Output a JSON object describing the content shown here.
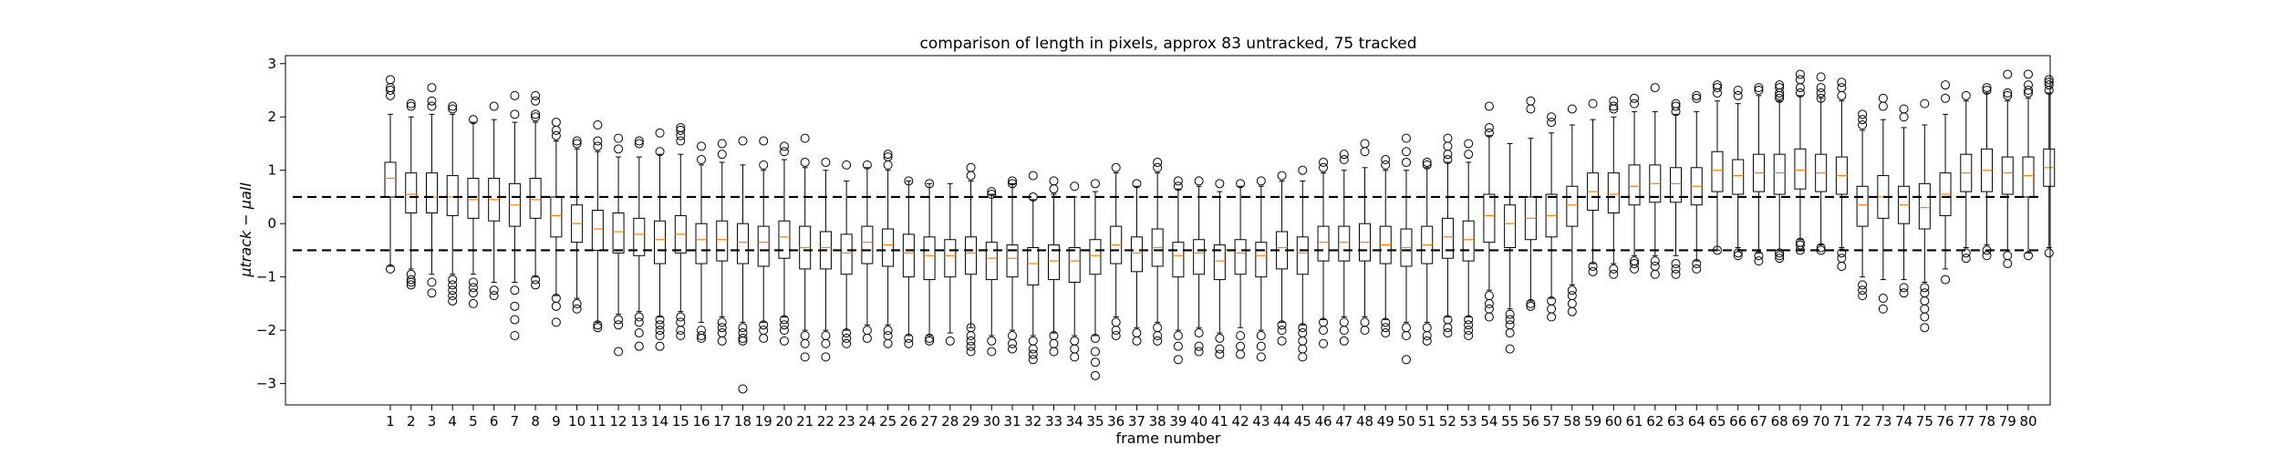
{
  "chart_data": {
    "type": "box",
    "title": "comparison of length in pixels, approx 83 untracked, 75 tracked",
    "xlabel": "frame number",
    "ylabel": "μtrack − μall",
    "ylim": [
      -3.4,
      3.15
    ],
    "yticks": [
      -3,
      -2,
      -1,
      0,
      1,
      2,
      3
    ],
    "reference_lines": [
      0.5,
      -0.5
    ],
    "colors": {
      "box": "#000000",
      "median": "#ff7f0e",
      "reference": "#000000"
    },
    "categories": [
      "1",
      "2",
      "3",
      "4",
      "5",
      "6",
      "7",
      "8",
      "9",
      "10",
      "11",
      "12",
      "13",
      "14",
      "15",
      "16",
      "17",
      "18",
      "19",
      "20",
      "21",
      "22",
      "23",
      "24",
      "25",
      "26",
      "27",
      "28",
      "29",
      "30",
      "31",
      "32",
      "33",
      "34",
      "35",
      "36",
      "37",
      "38",
      "39",
      "40",
      "41",
      "42",
      "43",
      "44",
      "45",
      "46",
      "47",
      "48",
      "49",
      "50",
      "51",
      "52",
      "53",
      "54",
      "55",
      "56",
      "57",
      "58",
      "59",
      "60",
      "61",
      "62",
      "63",
      "64",
      "65",
      "66",
      "67",
      "68",
      "69",
      "70",
      "71",
      "72",
      "73",
      "74",
      "75",
      "76",
      "77",
      "78",
      "79",
      "80"
    ],
    "boxes": [
      {
        "q1": 0.5,
        "median": 0.85,
        "q3": 1.15,
        "wl": -0.8,
        "wh": 2.05,
        "out": [
          2.7,
          2.55,
          2.5,
          2.4,
          -0.85
        ]
      },
      {
        "q1": 0.2,
        "median": 0.55,
        "q3": 0.95,
        "wl": -0.85,
        "wh": 2.0,
        "out": [
          2.25,
          2.2,
          -0.95,
          -1.05,
          -1.1,
          -1.15
        ]
      },
      {
        "q1": 0.2,
        "median": 0.5,
        "q3": 0.95,
        "wl": -0.95,
        "wh": 2.05,
        "out": [
          2.55,
          2.3,
          2.2,
          -1.1,
          -1.3
        ]
      },
      {
        "q1": 0.15,
        "median": 0.5,
        "q3": 0.9,
        "wl": -0.95,
        "wh": 2.05,
        "out": [
          2.2,
          2.15,
          -1.05,
          -1.15,
          -1.25,
          -1.35,
          -1.45
        ]
      },
      {
        "q1": 0.1,
        "median": 0.45,
        "q3": 0.85,
        "wl": -0.95,
        "wh": 1.9,
        "out": [
          1.95,
          -1.1,
          -1.2,
          -1.3,
          -1.5
        ]
      },
      {
        "q1": 0.05,
        "median": 0.45,
        "q3": 0.85,
        "wl": -1.1,
        "wh": 1.95,
        "out": [
          2.2,
          -1.25,
          -1.35
        ]
      },
      {
        "q1": -0.05,
        "median": 0.35,
        "q3": 0.75,
        "wl": -1.1,
        "wh": 1.9,
        "out": [
          2.4,
          2.05,
          -1.25,
          -1.55,
          -1.8,
          -2.1
        ]
      },
      {
        "q1": 0.1,
        "median": 0.45,
        "q3": 0.85,
        "wl": -1.0,
        "wh": 1.9,
        "out": [
          2.4,
          2.3,
          2.05,
          2.0,
          -1.05,
          -1.15
        ]
      },
      {
        "q1": -0.25,
        "median": 0.15,
        "q3": 0.5,
        "wl": -1.35,
        "wh": 1.55,
        "out": [
          1.9,
          1.75,
          1.65,
          -1.4,
          -1.55,
          -1.85
        ]
      },
      {
        "q1": -0.35,
        "median": 0.0,
        "q3": 0.35,
        "wl": -1.4,
        "wh": 1.4,
        "out": [
          1.55,
          1.5,
          -1.5,
          -1.6
        ]
      },
      {
        "q1": -0.5,
        "median": -0.1,
        "q3": 0.25,
        "wl": -1.85,
        "wh": 1.35,
        "out": [
          1.85,
          1.55,
          1.45,
          -1.9,
          -1.95
        ]
      },
      {
        "q1": -0.55,
        "median": -0.15,
        "q3": 0.2,
        "wl": -1.7,
        "wh": 1.25,
        "out": [
          1.6,
          1.4,
          -1.8,
          -1.9,
          -2.4
        ]
      },
      {
        "q1": -0.6,
        "median": -0.2,
        "q3": 0.1,
        "wl": -1.65,
        "wh": 1.25,
        "out": [
          1.55,
          1.5,
          -1.75,
          -1.85,
          -2.05,
          -2.3
        ]
      },
      {
        "q1": -0.75,
        "median": -0.3,
        "q3": 0.05,
        "wl": -1.75,
        "wh": 1.3,
        "out": [
          1.7,
          1.35,
          -1.8,
          -1.9,
          -2.0,
          -2.1,
          -2.3
        ]
      },
      {
        "q1": -0.55,
        "median": -0.2,
        "q3": 0.15,
        "wl": -1.65,
        "wh": 1.3,
        "out": [
          1.8,
          1.75,
          1.65,
          1.55,
          -1.75,
          -1.85,
          -2.0,
          -2.1
        ]
      },
      {
        "q1": -0.75,
        "median": -0.3,
        "q3": 0.0,
        "wl": -1.85,
        "wh": 1.1,
        "out": [
          1.45,
          1.2,
          -2.0,
          -2.1,
          -2.15
        ]
      },
      {
        "q1": -0.7,
        "median": -0.3,
        "q3": 0.05,
        "wl": -1.75,
        "wh": 1.15,
        "out": [
          1.5,
          1.3,
          -1.85,
          -1.95,
          -2.05,
          -2.2
        ]
      },
      {
        "q1": -0.75,
        "median": -0.35,
        "q3": 0.0,
        "wl": -1.85,
        "wh": 1.1,
        "out": [
          1.55,
          -1.95,
          -2.05,
          -2.15,
          -2.2,
          -3.1
        ]
      },
      {
        "q1": -0.8,
        "median": -0.35,
        "q3": -0.05,
        "wl": -1.85,
        "wh": 1.0,
        "out": [
          1.55,
          1.1,
          -1.9,
          -2.0,
          -2.15
        ]
      },
      {
        "q1": -0.65,
        "median": -0.25,
        "q3": 0.05,
        "wl": -1.75,
        "wh": 1.2,
        "out": [
          1.45,
          1.35,
          -1.8,
          -1.9,
          -2.0,
          -2.2
        ]
      },
      {
        "q1": -0.85,
        "median": -0.45,
        "q3": -0.05,
        "wl": -2.0,
        "wh": 1.05,
        "out": [
          1.6,
          1.15,
          -2.1,
          -2.25,
          -2.5
        ]
      },
      {
        "q1": -0.85,
        "median": -0.45,
        "q3": -0.15,
        "wl": -2.0,
        "wh": 1.0,
        "out": [
          1.15,
          -2.1,
          -2.25,
          -2.5
        ]
      },
      {
        "q1": -0.95,
        "median": -0.55,
        "q3": -0.2,
        "wl": -2.0,
        "wh": 0.8,
        "out": [
          1.1,
          -2.05,
          -2.15,
          -2.25
        ]
      },
      {
        "q1": -0.75,
        "median": -0.35,
        "q3": -0.05,
        "wl": -1.9,
        "wh": 1.05,
        "out": [
          1.1,
          -2.0,
          -2.15
        ]
      },
      {
        "q1": -0.8,
        "median": -0.4,
        "q3": -0.1,
        "wl": -1.9,
        "wh": 1.0,
        "out": [
          1.3,
          1.25,
          1.1,
          -2.0,
          -2.1,
          -2.25
        ]
      },
      {
        "q1": -1.0,
        "median": -0.55,
        "q3": -0.2,
        "wl": -2.1,
        "wh": 0.8,
        "out": [
          0.8,
          -2.15,
          -2.25
        ]
      },
      {
        "q1": -1.05,
        "median": -0.6,
        "q3": -0.25,
        "wl": -2.1,
        "wh": 0.75,
        "out": [
          0.75,
          -2.15,
          -2.2
        ]
      },
      {
        "q1": -1.0,
        "median": -0.6,
        "q3": -0.3,
        "wl": -2.05,
        "wh": 0.75,
        "out": [
          -2.2
        ]
      },
      {
        "q1": -0.95,
        "median": -0.55,
        "q3": -0.25,
        "wl": -1.95,
        "wh": 0.8,
        "out": [
          1.05,
          0.9,
          -1.95,
          -2.1,
          -2.2,
          -2.3,
          -2.4
        ]
      },
      {
        "q1": -1.05,
        "median": -0.65,
        "q3": -0.35,
        "wl": -2.1,
        "wh": 0.55,
        "out": [
          0.6,
          0.55,
          -2.2,
          -2.4
        ]
      },
      {
        "q1": -1.0,
        "median": -0.65,
        "q3": -0.4,
        "wl": -2.0,
        "wh": 0.75,
        "out": [
          0.8,
          0.75,
          -2.1,
          -2.25,
          -2.35
        ]
      },
      {
        "q1": -1.15,
        "median": -0.75,
        "q3": -0.45,
        "wl": -2.1,
        "wh": 0.45,
        "out": [
          0.9,
          0.5,
          -2.2,
          -2.35,
          -2.45,
          -2.55
        ]
      },
      {
        "q1": -1.05,
        "median": -0.7,
        "q3": -0.4,
        "wl": -2.05,
        "wh": 0.55,
        "out": [
          0.8,
          0.65,
          -2.1,
          -2.25,
          -2.4
        ]
      },
      {
        "q1": -1.1,
        "median": -0.7,
        "q3": -0.45,
        "wl": -2.1,
        "wh": 0.5,
        "out": [
          0.7,
          -2.2,
          -2.35,
          -2.5
        ]
      },
      {
        "q1": -0.95,
        "median": -0.6,
        "q3": -0.3,
        "wl": -2.1,
        "wh": 0.6,
        "out": [
          0.75,
          -2.15,
          -2.4,
          -2.6,
          -2.85
        ]
      },
      {
        "q1": -0.75,
        "median": -0.4,
        "q3": -0.05,
        "wl": -1.75,
        "wh": 0.95,
        "out": [
          1.05,
          -1.85,
          -2.0,
          -2.1
        ]
      },
      {
        "q1": -0.9,
        "median": -0.55,
        "q3": -0.25,
        "wl": -1.95,
        "wh": 0.7,
        "out": [
          0.75,
          -2.05,
          -2.2
        ]
      },
      {
        "q1": -0.8,
        "median": -0.45,
        "q3": -0.1,
        "wl": -1.85,
        "wh": 0.95,
        "out": [
          1.15,
          1.05,
          -1.95,
          -2.1,
          -2.2
        ]
      },
      {
        "q1": -1.0,
        "median": -0.6,
        "q3": -0.35,
        "wl": -2.0,
        "wh": 0.65,
        "out": [
          0.8,
          0.7,
          -2.1,
          -2.3,
          -2.55
        ]
      },
      {
        "q1": -0.95,
        "median": -0.55,
        "q3": -0.3,
        "wl": -1.95,
        "wh": 0.7,
        "out": [
          0.8,
          -2.05,
          -2.3,
          -2.4
        ]
      },
      {
        "q1": -1.05,
        "median": -0.7,
        "q3": -0.4,
        "wl": -2.05,
        "wh": 0.6,
        "out": [
          0.75,
          -2.15,
          -2.35,
          -2.45
        ]
      },
      {
        "q1": -0.95,
        "median": -0.55,
        "q3": -0.3,
        "wl": -1.95,
        "wh": 0.7,
        "out": [
          0.75,
          -2.1,
          -2.3,
          -2.45
        ]
      },
      {
        "q1": -1.0,
        "median": -0.6,
        "q3": -0.35,
        "wl": -2.0,
        "wh": 0.7,
        "out": [
          0.8,
          -2.1,
          -2.3,
          -2.5
        ]
      },
      {
        "q1": -0.85,
        "median": -0.45,
        "q3": -0.15,
        "wl": -1.85,
        "wh": 0.8,
        "out": [
          0.9,
          -1.9,
          -2.0,
          -2.2
        ]
      },
      {
        "q1": -0.95,
        "median": -0.55,
        "q3": -0.25,
        "wl": -1.9,
        "wh": 0.8,
        "out": [
          1.0,
          -1.95,
          -2.05,
          -2.2,
          -2.35,
          -2.5
        ]
      },
      {
        "q1": -0.7,
        "median": -0.35,
        "q3": -0.05,
        "wl": -1.8,
        "wh": 0.95,
        "out": [
          1.15,
          1.05,
          -1.85,
          -2.0,
          -2.25
        ]
      },
      {
        "q1": -0.7,
        "median": -0.35,
        "q3": -0.05,
        "wl": -1.75,
        "wh": 1.0,
        "out": [
          1.3,
          1.2,
          -1.85,
          -2.0,
          -2.2
        ]
      },
      {
        "q1": -0.7,
        "median": -0.35,
        "q3": 0.0,
        "wl": -1.75,
        "wh": 1.05,
        "out": [
          1.5,
          1.35,
          -1.85,
          -2.0
        ]
      },
      {
        "q1": -0.75,
        "median": -0.4,
        "q3": -0.05,
        "wl": -1.8,
        "wh": 1.0,
        "out": [
          1.2,
          1.1,
          -1.85,
          -1.95,
          -2.05
        ]
      },
      {
        "q1": -0.8,
        "median": -0.45,
        "q3": -0.1,
        "wl": -1.85,
        "wh": 1.0,
        "out": [
          1.6,
          1.35,
          1.15,
          -1.95,
          -2.1,
          -2.55
        ]
      },
      {
        "q1": -0.75,
        "median": -0.4,
        "q3": -0.05,
        "wl": -1.85,
        "wh": 1.05,
        "out": [
          1.15,
          1.1,
          -1.95,
          -2.1,
          -2.2
        ]
      },
      {
        "q1": -0.65,
        "median": -0.25,
        "q3": 0.1,
        "wl": -1.75,
        "wh": 1.15,
        "out": [
          1.6,
          1.45,
          1.3,
          1.2,
          -1.8,
          -1.95,
          -2.05
        ]
      },
      {
        "q1": -0.7,
        "median": -0.3,
        "q3": 0.05,
        "wl": -1.75,
        "wh": 1.15,
        "out": [
          1.5,
          1.3,
          -1.8,
          -1.9,
          -2.0,
          -2.1
        ]
      },
      {
        "q1": -0.35,
        "median": 0.15,
        "q3": 0.55,
        "wl": -1.25,
        "wh": 1.65,
        "out": [
          2.2,
          1.8,
          1.7,
          -1.35,
          -1.5,
          -1.6,
          -1.75
        ]
      },
      {
        "q1": -0.45,
        "median": 0.0,
        "q3": 0.35,
        "wl": -1.6,
        "wh": 1.5,
        "out": [
          -1.7,
          -1.8,
          -1.9,
          -2.05,
          -2.35
        ]
      },
      {
        "q1": -0.3,
        "median": 0.1,
        "q3": 0.5,
        "wl": -1.45,
        "wh": 1.6,
        "out": [
          2.3,
          2.15,
          -1.5,
          -1.55
        ]
      },
      {
        "q1": -0.25,
        "median": 0.15,
        "q3": 0.55,
        "wl": -1.4,
        "wh": 1.7,
        "out": [
          2.0,
          1.9,
          -1.45,
          -1.6,
          -1.75
        ]
      },
      {
        "q1": -0.05,
        "median": 0.35,
        "q3": 0.7,
        "wl": -1.15,
        "wh": 1.85,
        "out": [
          2.15,
          -1.25,
          -1.35,
          -1.5,
          -1.65
        ]
      },
      {
        "q1": 0.25,
        "median": 0.6,
        "q3": 0.95,
        "wl": -0.75,
        "wh": 1.95,
        "out": [
          2.25,
          -0.8,
          -0.9
        ]
      },
      {
        "q1": 0.2,
        "median": 0.55,
        "q3": 0.95,
        "wl": -0.75,
        "wh": 2.0,
        "out": [
          2.3,
          2.2,
          2.15,
          -0.85,
          -0.95
        ]
      },
      {
        "q1": 0.35,
        "median": 0.7,
        "q3": 1.1,
        "wl": -0.6,
        "wh": 2.1,
        "out": [
          2.35,
          2.25,
          -0.7,
          -0.75,
          -0.85
        ]
      },
      {
        "q1": 0.4,
        "median": 0.75,
        "q3": 1.1,
        "wl": -0.6,
        "wh": 2.1,
        "out": [
          2.55,
          -0.7,
          -0.8,
          -0.95
        ]
      },
      {
        "q1": 0.4,
        "median": 0.75,
        "q3": 1.05,
        "wl": -0.6,
        "wh": 2.05,
        "out": [
          2.25,
          2.2,
          2.1,
          -0.75,
          -0.85,
          -0.95
        ]
      },
      {
        "q1": 0.35,
        "median": 0.7,
        "q3": 1.05,
        "wl": -0.7,
        "wh": 2.1,
        "out": [
          2.4,
          2.35,
          -0.75,
          -0.85
        ]
      },
      {
        "q1": 0.6,
        "median": 1.0,
        "q3": 1.35,
        "wl": -0.5,
        "wh": 2.3,
        "out": [
          2.6,
          2.55,
          2.45,
          -0.5
        ]
      },
      {
        "q1": 0.55,
        "median": 0.9,
        "q3": 1.2,
        "wl": -0.45,
        "wh": 2.25,
        "out": [
          2.5,
          2.4,
          -0.55,
          -0.6
        ]
      },
      {
        "q1": 0.6,
        "median": 0.95,
        "q3": 1.3,
        "wl": -0.55,
        "wh": 2.4,
        "out": [
          2.55,
          2.5,
          -0.6,
          -0.7
        ]
      },
      {
        "q1": 0.55,
        "median": 0.95,
        "q3": 1.3,
        "wl": -0.5,
        "wh": 2.3,
        "out": [
          2.6,
          2.55,
          2.45,
          2.4,
          2.35,
          -0.55,
          -0.6,
          -0.65
        ]
      },
      {
        "q1": 0.65,
        "median": 1.0,
        "q3": 1.4,
        "wl": -0.3,
        "wh": 2.4,
        "out": [
          2.8,
          2.7,
          2.55,
          2.45,
          -0.35,
          -0.4,
          -0.5
        ]
      },
      {
        "q1": 0.6,
        "median": 0.95,
        "q3": 1.3,
        "wl": -0.4,
        "wh": 2.35,
        "out": [
          2.75,
          2.55,
          2.45,
          2.35,
          -0.45,
          -0.5
        ]
      },
      {
        "q1": 0.55,
        "median": 0.9,
        "q3": 1.25,
        "wl": -0.45,
        "wh": 2.3,
        "out": [
          2.65,
          2.55,
          2.4,
          -0.55,
          -0.65,
          -0.8
        ]
      },
      {
        "q1": -0.05,
        "median": 0.35,
        "q3": 0.7,
        "wl": -1.0,
        "wh": 1.75,
        "out": [
          2.05,
          1.95,
          1.85,
          -1.15,
          -1.25,
          -1.35
        ]
      },
      {
        "q1": 0.1,
        "median": 0.5,
        "q3": 0.9,
        "wl": -1.05,
        "wh": 1.95,
        "out": [
          2.35,
          2.2,
          -1.4,
          -1.6
        ]
      },
      {
        "q1": 0.0,
        "median": 0.35,
        "q3": 0.7,
        "wl": -1.05,
        "wh": 1.8,
        "out": [
          2.15,
          2.0,
          -1.2,
          -1.3
        ]
      },
      {
        "q1": -0.1,
        "median": 0.3,
        "q3": 0.75,
        "wl": -1.1,
        "wh": 1.85,
        "out": [
          2.25,
          -1.2,
          -1.3,
          -1.45,
          -1.6,
          -1.75,
          -1.95
        ]
      },
      {
        "q1": 0.15,
        "median": 0.55,
        "q3": 0.95,
        "wl": -0.85,
        "wh": 2.05,
        "out": [
          2.35,
          2.6,
          -1.05
        ]
      },
      {
        "q1": 0.6,
        "median": 0.95,
        "q3": 1.3,
        "wl": -0.45,
        "wh": 2.3,
        "out": [
          2.4,
          -0.55,
          -0.65
        ]
      },
      {
        "q1": 0.6,
        "median": 1.0,
        "q3": 1.4,
        "wl": -0.4,
        "wh": 2.45,
        "out": [
          2.55,
          2.5,
          -0.5,
          -0.6
        ]
      },
      {
        "q1": 0.55,
        "median": 0.95,
        "q3": 1.25,
        "wl": -0.5,
        "wh": 2.3,
        "out": [
          2.8,
          2.45,
          2.4,
          -0.6,
          -0.75
        ]
      },
      {
        "q1": 0.5,
        "median": 0.9,
        "q3": 1.25,
        "wl": -0.55,
        "wh": 2.35,
        "out": [
          2.8,
          2.6,
          2.5,
          2.45,
          -0.6
        ]
      },
      {
        "q1": 0.7,
        "median": 1.05,
        "q3": 1.4,
        "wl": -0.45,
        "wh": 2.45,
        "out": [
          2.7,
          2.65,
          2.6,
          2.5,
          -0.55
        ]
      }
    ]
  }
}
